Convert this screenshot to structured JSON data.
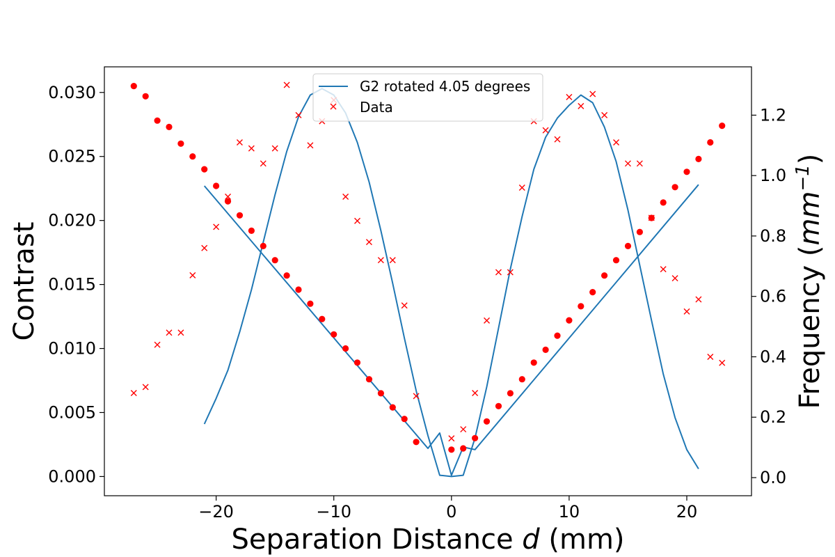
{
  "chart_data": {
    "type": "line",
    "title": "",
    "xlabel_prefix": "Separation Distance ",
    "xlabel_var": "d",
    "xlabel_suffix": " (mm)",
    "ylabel_left": "Contrast",
    "ylabel_right_prefix": "Frequency (",
    "ylabel_right_unit": "mm",
    "ylabel_right_exp": "−1",
    "ylabel_right_suffix": ")",
    "xlim": [
      -29.5,
      25.5
    ],
    "ylim_left": [
      -0.0015,
      0.032
    ],
    "ylim_right": [
      -0.06,
      1.36
    ],
    "x_ticks": [
      -20,
      -10,
      0,
      10,
      20
    ],
    "x_tick_labels": [
      "−20",
      "−10",
      "0",
      "10",
      "20"
    ],
    "y_left_ticks": [
      0.0,
      0.005,
      0.01,
      0.015,
      0.02,
      0.025,
      0.03
    ],
    "y_left_tick_labels": [
      "0.000",
      "0.005",
      "0.010",
      "0.015",
      "0.020",
      "0.025",
      "0.030"
    ],
    "y_right_ticks": [
      0.0,
      0.2,
      0.4,
      0.6,
      0.8,
      1.0,
      1.2
    ],
    "y_right_tick_labels": [
      "0.0",
      "0.2",
      "0.4",
      "0.6",
      "0.8",
      "1.0",
      "1.2"
    ],
    "legend": {
      "placement": "upper-center",
      "entries": [
        "G2 rotated 4.05 degrees",
        "Data"
      ]
    },
    "grid": false,
    "colors": {
      "line": "#1f77b4",
      "points": "#ff0000"
    },
    "series": [
      {
        "name": "G2 rotated 4.05 degrees",
        "kind": "line",
        "axis": "left",
        "x": [
          -21,
          -20,
          -19,
          -18,
          -17,
          -16,
          -15,
          -14,
          -13,
          -12,
          -11,
          -10,
          -9,
          -8,
          -7,
          -6,
          -5,
          -4,
          -3,
          -2,
          -1,
          0,
          1,
          2,
          3,
          4,
          5,
          6,
          7,
          8,
          9,
          10,
          11,
          12,
          13,
          14,
          15,
          16,
          17,
          18,
          19,
          20,
          21
        ],
        "y": [
          0.0041,
          0.0061,
          0.0083,
          0.0113,
          0.0146,
          0.0183,
          0.022,
          0.0254,
          0.0281,
          0.0298,
          0.0303,
          0.0298,
          0.0284,
          0.0261,
          0.023,
          0.0192,
          0.0151,
          0.0108,
          0.0067,
          0.0032,
          0.0001,
          0.0,
          0.0001,
          0.003,
          0.007,
          0.0116,
          0.0162,
          0.0203,
          0.024,
          0.0265,
          0.028,
          0.029,
          0.0298,
          0.0292,
          0.0273,
          0.0246,
          0.0208,
          0.0165,
          0.0122,
          0.008,
          0.0046,
          0.0021,
          0.0006
        ]
      },
      {
        "name": "",
        "kind": "line",
        "axis": "left",
        "x": [
          -21,
          -2,
          -1,
          0,
          1,
          2,
          21
        ],
        "y": [
          0.0227,
          0.0022,
          0.0034,
          0.0001,
          0.0023,
          0.0021,
          0.0228
        ]
      },
      {
        "name": "",
        "kind": "circle",
        "axis": "left",
        "x": [
          -27,
          -26,
          -25,
          -24,
          -23,
          -22,
          -21,
          -20,
          -19,
          -18,
          -17,
          -16,
          -15,
          -14,
          -13,
          -12,
          -11,
          -10,
          -9,
          -8,
          -7,
          -6,
          -5,
          -4,
          -3,
          0,
          1,
          2,
          3,
          4,
          5,
          6,
          7,
          8,
          9,
          10,
          11,
          12,
          13,
          14,
          15,
          16,
          17,
          18,
          19,
          20,
          21,
          22,
          23
        ],
        "y": [
          0.0305,
          0.0297,
          0.0278,
          0.0273,
          0.026,
          0.025,
          0.024,
          0.0227,
          0.0215,
          0.0204,
          0.0192,
          0.018,
          0.0169,
          0.0157,
          0.0146,
          0.0135,
          0.0123,
          0.0111,
          0.01,
          0.0089,
          0.0076,
          0.0065,
          0.0054,
          0.0045,
          0.0027,
          0.0021,
          0.0022,
          0.003,
          0.0043,
          0.0055,
          0.0065,
          0.0076,
          0.0089,
          0.0099,
          0.011,
          0.0122,
          0.0133,
          0.0144,
          0.0157,
          0.0169,
          0.018,
          0.0191,
          0.0202,
          0.0214,
          0.0226,
          0.0238,
          0.0248,
          0.0261,
          0.0274
        ]
      },
      {
        "name": "Data",
        "kind": "x",
        "axis": "right",
        "x": [
          -27,
          -26,
          -25,
          -24,
          -23,
          -22,
          -21,
          -20,
          -19,
          -18,
          -17,
          -16,
          -15,
          -14,
          -13,
          -12,
          -11,
          -10,
          -9,
          -8,
          -7,
          -6,
          -5,
          -4,
          -3,
          0,
          1,
          2,
          3,
          4,
          5,
          6,
          7,
          8,
          9,
          10,
          11,
          12,
          13,
          14,
          15,
          16,
          17,
          18,
          19,
          20,
          21,
          22,
          23
        ],
        "y": [
          0.28,
          0.3,
          0.44,
          0.48,
          0.48,
          0.67,
          0.76,
          0.83,
          0.93,
          1.11,
          1.09,
          1.04,
          1.09,
          1.3,
          1.2,
          1.1,
          1.18,
          1.25,
          0.93,
          0.85,
          0.78,
          0.72,
          0.72,
          0.57,
          0.27,
          0.13,
          0.16,
          0.28,
          0.52,
          0.68,
          0.68,
          0.96,
          1.18,
          1.15,
          1.12,
          1.26,
          1.23,
          1.27,
          1.2,
          1.11,
          1.04,
          1.04,
          0.86,
          0.69,
          0.66,
          0.55,
          0.59,
          0.4,
          0.38
        ]
      }
    ]
  }
}
